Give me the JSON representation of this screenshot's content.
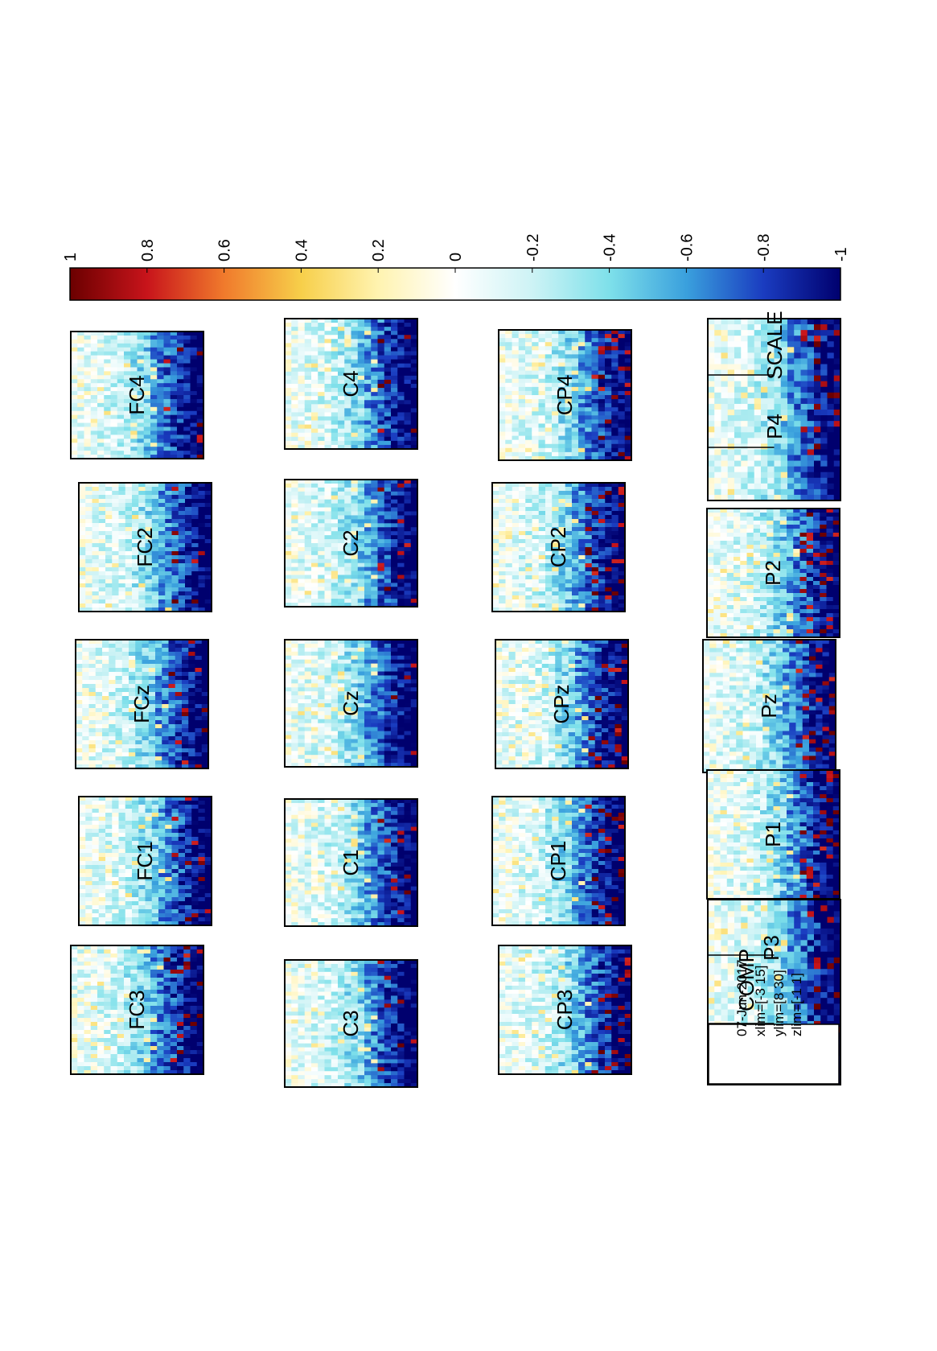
{
  "chart_data": {
    "type": "heatmap",
    "title": "",
    "orientation": "rotated-90-clockwise",
    "colormap": "jet-like diverging (dark red = 1, white = 0, dark blue = -1)",
    "zlim": [
      -1,
      1
    ],
    "colorbar": {
      "ticks": [
        "1",
        "0.8",
        "0.6",
        "0.4",
        "0.2",
        "0",
        "-0.2",
        "-0.4",
        "-0.6",
        "-0.8",
        "-1"
      ],
      "colors": [
        "#6b0000",
        "#c8141b",
        "#f07a2c",
        "#f7cf4a",
        "#fff3b0",
        "#ffffff",
        "#cdf3f5",
        "#7ee0ea",
        "#3aa0dd",
        "#1a3cc0",
        "#00006e"
      ]
    },
    "channels": [
      "FC3",
      "FC1",
      "FCz",
      "FC2",
      "FC4",
      "C3",
      "C1",
      "Cz",
      "C2",
      "C4",
      "CP3",
      "CP1",
      "CPz",
      "CP2",
      "CP4",
      "P1",
      "Pz",
      "P2",
      "P4",
      "POz",
      "P3"
    ],
    "summary": "Each channel panel: near zero (white/light cyan) over most of the plane, strong negative values (dark blue, about -1) in a band at one edge, with scattered positive (red) patches near that edge.",
    "info": {
      "date": "07-Jun-2017",
      "xlim": "xlim=[-3 15]",
      "ylim": "ylim=[8 30]",
      "zlim": "zlim=[-1 1]"
    },
    "scale_label": "SCALE",
    "comp_label": "COMP"
  }
}
